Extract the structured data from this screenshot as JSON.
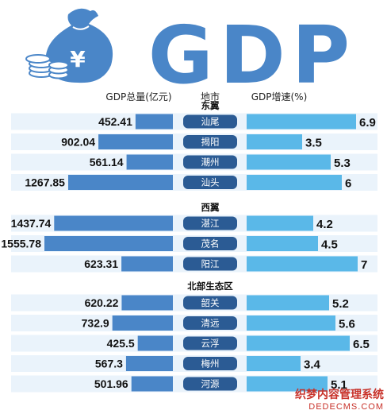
{
  "title": "GDP",
  "colors": {
    "bar_left": "#4a86c8",
    "bar_right": "#5ab8e8",
    "row_band": "#eaf3fb",
    "city_pill": "#2b5b94",
    "title": "#4a86c8"
  },
  "icons": {
    "money_bag": "money-bag-icon",
    "coins": "coins-icon"
  },
  "headers": {
    "gdp": "GDP总量(亿元)",
    "city": "地市",
    "growth": "GDP增速(%)"
  },
  "chart_data": {
    "type": "bar",
    "layout": "back-to-back horizontal bars",
    "series": [
      {
        "name": "GDP总量(亿元)",
        "key": "gdp"
      },
      {
        "name": "GDP增速(%)",
        "key": "growth"
      }
    ],
    "groups": [
      {
        "region": "东翼",
        "items": [
          {
            "city": "汕尾",
            "gdp": "452.41",
            "growth": "6.9"
          },
          {
            "city": "揭阳",
            "gdp": "902.04",
            "growth": "3.5"
          },
          {
            "city": "潮州",
            "gdp": "561.14",
            "growth": "5.3"
          },
          {
            "city": "汕头",
            "gdp": "1267.85",
            "growth": "6"
          }
        ]
      },
      {
        "region": "西翼",
        "items": [
          {
            "city": "湛江",
            "gdp": "1437.74",
            "growth": "4.2"
          },
          {
            "city": "茂名",
            "gdp": "1555.78",
            "growth": "4.5"
          },
          {
            "city": "阳江",
            "gdp": "623.31",
            "growth": "7"
          }
        ]
      },
      {
        "region": "北部生态区",
        "items": [
          {
            "city": "韶关",
            "gdp": "620.22",
            "growth": "5.2"
          },
          {
            "city": "清远",
            "gdp": "732.9",
            "growth": "5.6"
          },
          {
            "city": "云浮",
            "gdp": "425.5",
            "growth": "6.5"
          },
          {
            "city": "梅州",
            "gdp": "567.3",
            "growth": "3.4"
          },
          {
            "city": "河源",
            "gdp": "501.96",
            "growth": "5.1"
          }
        ]
      }
    ]
  },
  "watermark": {
    "line1": "织梦内容管理系统",
    "line2": "DEDECMS.COM"
  }
}
